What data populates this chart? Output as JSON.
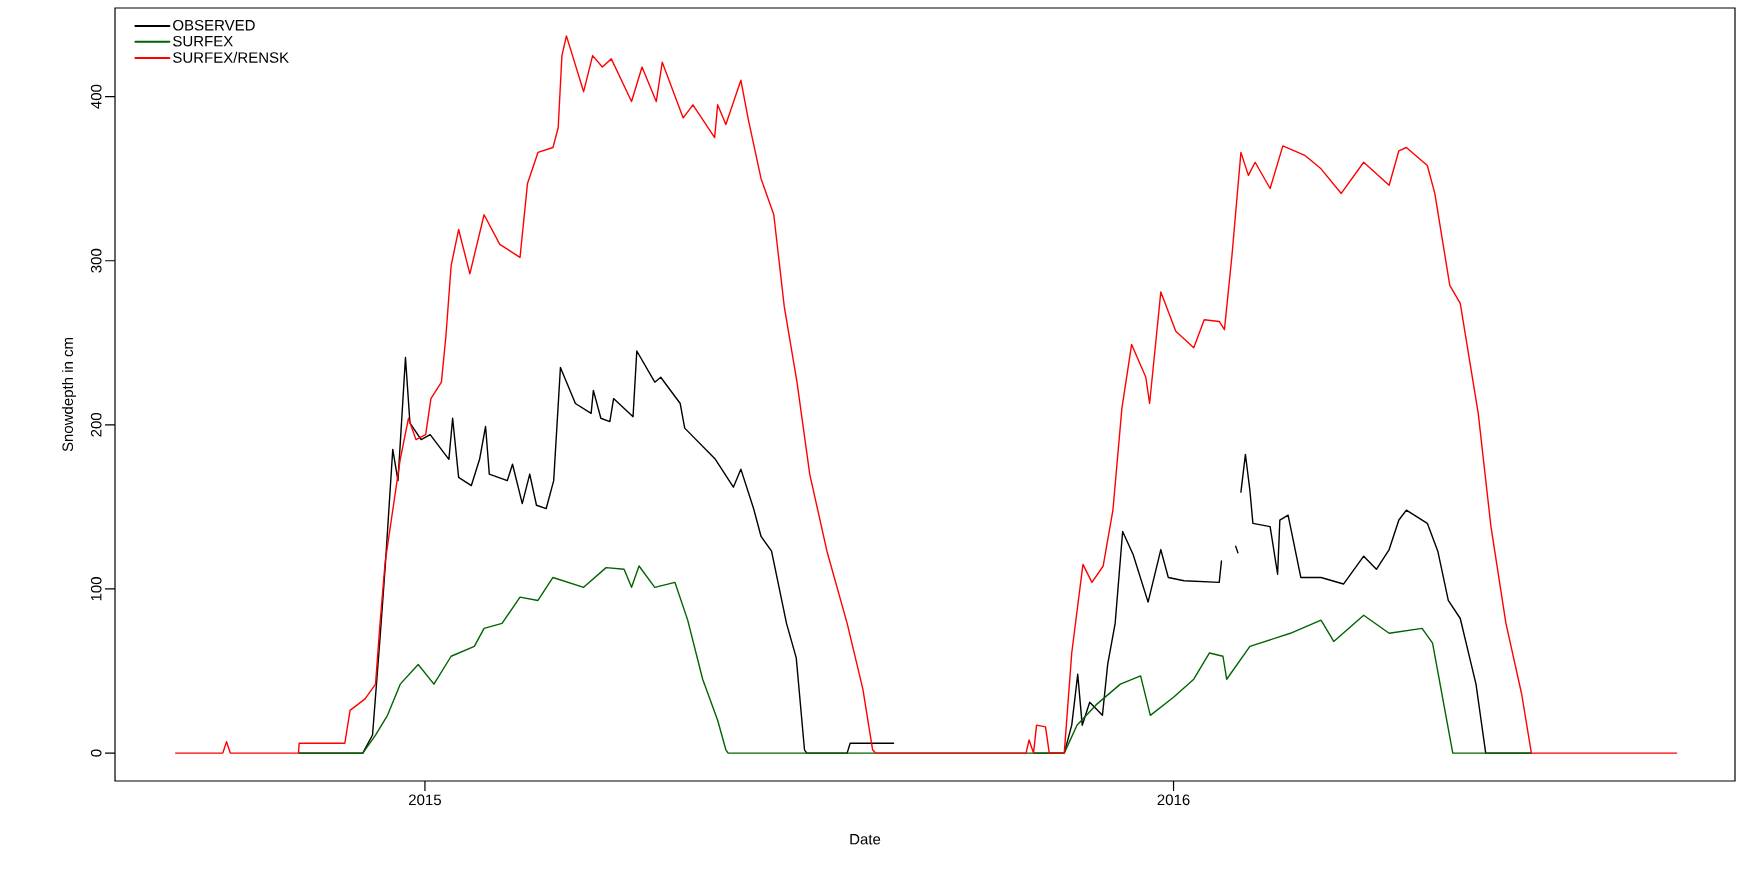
{
  "chart_data": {
    "type": "line",
    "xlabel": "Date",
    "ylabel": "Snowdepth in cm",
    "xlim": [
      2014.586,
      2016.75
    ],
    "ylim": [
      -17,
      454
    ],
    "xticks": [
      2015,
      2016
    ],
    "yticks": [
      0,
      100,
      200,
      300,
      400
    ],
    "legend": "top left",
    "series": [
      {
        "name": "OBSERVED",
        "color": "#000000",
        "x": [
          2014.832,
          2014.917,
          2014.93,
          2014.94,
          2014.947,
          2014.957,
          2014.964,
          2014.974,
          2014.98,
          2014.995,
          2015.007,
          2015.032,
          2015.037,
          2015.045,
          2015.062,
          2015.073,
          2015.081,
          2015.086,
          2015.11,
          2015.117,
          2015.13,
          2015.14,
          2015.149,
          2015.162,
          2015.172,
          2015.181,
          2015.201,
          2015.222,
          2015.225,
          2015.235,
          2015.247,
          2015.252,
          2015.278,
          2015.283,
          2015.307,
          2015.315,
          2015.341,
          2015.347,
          2015.388,
          2015.412,
          2015.422,
          2015.439,
          2015.449,
          2015.463,
          2015.483,
          2015.496,
          2015.507,
          2015.51,
          2015.564,
          2015.568,
          2015.626,
          2015.7,
          2015.813,
          2015.854,
          2015.864,
          2015.872,
          2015.878,
          2015.888,
          2015.905,
          2015.912,
          2015.922,
          2015.932,
          2015.946,
          2015.966,
          2015.983,
          2015.993,
          2016.014,
          2016.061,
          2016.064,
          2016.074,
          2016.083,
          2016.086,
          2016.088,
          2016.09,
          2016.096,
          2016.102,
          2016.106,
          2016.129,
          2016.139,
          2016.142,
          2016.153,
          2016.17,
          2016.197,
          2016.227,
          2016.254,
          2016.271,
          2016.288,
          2016.301,
          2016.311,
          2016.339,
          2016.353,
          2016.367,
          2016.383,
          2016.404,
          2016.417,
          2016.478
        ],
        "values": [
          0,
          0,
          11,
          70,
          114,
          185,
          166,
          241,
          201,
          191,
          194,
          179,
          204,
          168,
          163,
          179,
          199,
          170,
          166,
          176,
          152,
          170,
          151,
          149,
          166,
          235,
          213,
          207,
          221,
          204,
          202,
          216,
          205,
          245,
          226,
          229,
          213,
          198,
          179,
          162,
          173,
          149,
          132,
          123,
          79,
          58,
          2,
          0,
          0,
          6,
          6,
          null,
          0,
          0,
          17,
          48,
          17,
          31,
          23,
          54,
          79,
          135,
          121,
          92,
          124,
          107,
          105,
          104,
          117,
          null,
          126,
          122,
          null,
          159,
          182,
          160,
          140,
          138,
          109,
          142,
          145,
          107,
          107,
          103,
          120,
          112,
          124,
          142,
          148,
          140,
          123,
          93,
          82,
          42,
          0,
          0
        ]
      },
      {
        "name": "SURFEX",
        "color": "#006400",
        "x": [
          2014.832,
          2014.917,
          2014.934,
          2014.95,
          2014.967,
          2014.991,
          2015.012,
          2015.035,
          2015.066,
          2015.079,
          2015.103,
          2015.127,
          2015.151,
          2015.171,
          2015.212,
          2015.242,
          2015.266,
          2015.276,
          2015.286,
          2015.307,
          2015.334,
          2015.351,
          2015.371,
          2015.391,
          2015.402,
          2015.405,
          2015.854,
          2015.871,
          2015.898,
          2015.929,
          2015.956,
          2015.969,
          2016.0,
          2016.027,
          2016.048,
          2016.066,
          2016.071,
          2016.102,
          2016.156,
          2016.197,
          2016.214,
          2016.254,
          2016.288,
          2016.332,
          2016.346,
          2016.373,
          2016.478
        ],
        "values": [
          0,
          0,
          11,
          23,
          42,
          54,
          42,
          59,
          65,
          76,
          79,
          95,
          93,
          107,
          101,
          113,
          112,
          101,
          114,
          101,
          104,
          81,
          45,
          20,
          2,
          0,
          0,
          17,
          30,
          42,
          47,
          23,
          34,
          45,
          61,
          59,
          45,
          65,
          73,
          81,
          68,
          84,
          73,
          76,
          67,
          0,
          0
        ]
      },
      {
        "name": "SURFEX/RENSK",
        "color": "#ff0000",
        "x": [
          2014.667,
          2014.73,
          2014.735,
          2014.74,
          2014.831,
          2014.832,
          2014.893,
          2014.9,
          2014.92,
          2014.934,
          2014.94,
          2014.947,
          2014.957,
          2014.967,
          2014.978,
          2014.988,
          2015.001,
          2015.008,
          2015.022,
          2015.028,
          2015.035,
          2015.045,
          2015.06,
          2015.079,
          2015.1,
          2015.127,
          2015.137,
          2015.151,
          2015.171,
          2015.178,
          2015.183,
          2015.189,
          2015.212,
          2015.224,
          2015.237,
          2015.249,
          2015.276,
          2015.29,
          2015.309,
          2015.317,
          2015.345,
          2015.358,
          2015.387,
          2015.391,
          2015.402,
          2015.422,
          2015.432,
          2015.449,
          2015.466,
          2015.48,
          2015.497,
          2015.514,
          2015.537,
          2015.564,
          2015.585,
          2015.598,
          2015.602,
          2015.803,
          2015.807,
          2015.813,
          2015.817,
          2015.829,
          2015.834,
          2015.854,
          2015.864,
          2015.879,
          2015.891,
          2015.906,
          2015.919,
          2015.931,
          2015.944,
          2015.963,
          2015.968,
          2015.983,
          2016.003,
          2016.027,
          2016.041,
          2016.061,
          2016.068,
          2016.078,
          2016.09,
          2016.1,
          2016.109,
          2016.129,
          2016.146,
          2016.176,
          2016.197,
          2016.224,
          2016.254,
          2016.288,
          2016.301,
          2016.311,
          2016.339,
          2016.349,
          2016.369,
          2016.383,
          2016.407,
          2016.424,
          2016.444,
          2016.465,
          2016.478,
          2016.672
        ],
        "values": [
          0,
          0,
          7,
          0,
          0,
          6,
          6,
          26,
          33,
          42,
          79,
          117,
          148,
          179,
          204,
          191,
          194,
          216,
          226,
          254,
          297,
          319,
          292,
          328,
          310,
          302,
          347,
          366,
          369,
          381,
          425,
          437,
          403,
          425,
          418,
          423,
          397,
          418,
          397,
          421,
          387,
          395,
          375,
          395,
          383,
          410,
          386,
          350,
          328,
          272,
          226,
          170,
          123,
          79,
          39,
          2,
          0,
          0,
          8,
          0,
          17,
          16,
          0,
          0,
          61,
          115,
          104,
          114,
          148,
          210,
          249,
          229,
          213,
          281,
          257,
          247,
          264,
          263,
          258,
          303,
          366,
          352,
          360,
          344,
          370,
          364,
          356,
          341,
          360,
          346,
          367,
          369,
          358,
          341,
          285,
          274,
          207,
          138,
          79,
          36,
          0,
          0
        ]
      }
    ]
  }
}
